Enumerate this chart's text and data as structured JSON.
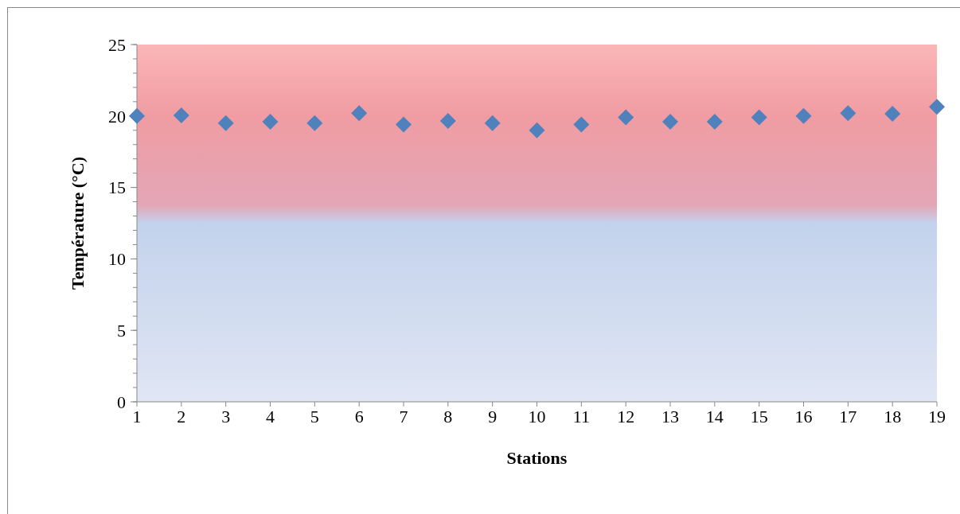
{
  "chart_data": {
    "type": "scatter",
    "xlabel": "Stations",
    "ylabel": "Température (°C)",
    "x": [
      1,
      2,
      3,
      4,
      5,
      6,
      7,
      8,
      9,
      10,
      11,
      12,
      13,
      14,
      15,
      16,
      17,
      18,
      19
    ],
    "series": [
      {
        "color": "#4f81bd",
        "values": [
          20.0,
          20.05,
          19.5,
          19.6,
          19.5,
          20.2,
          19.4,
          19.65,
          19.5,
          19.0,
          19.4,
          19.9,
          19.6,
          19.6,
          19.9,
          20.0,
          20.2,
          20.15,
          20.65
        ]
      }
    ],
    "xlim": [
      1,
      19
    ],
    "xticks": [
      1,
      2,
      3,
      4,
      5,
      6,
      7,
      8,
      9,
      10,
      11,
      12,
      13,
      14,
      15,
      16,
      17,
      18,
      19
    ],
    "ylim": [
      0,
      25
    ],
    "yticks": [
      0,
      5,
      10,
      15,
      20,
      25
    ],
    "marker": "diamond",
    "grid": false
  }
}
